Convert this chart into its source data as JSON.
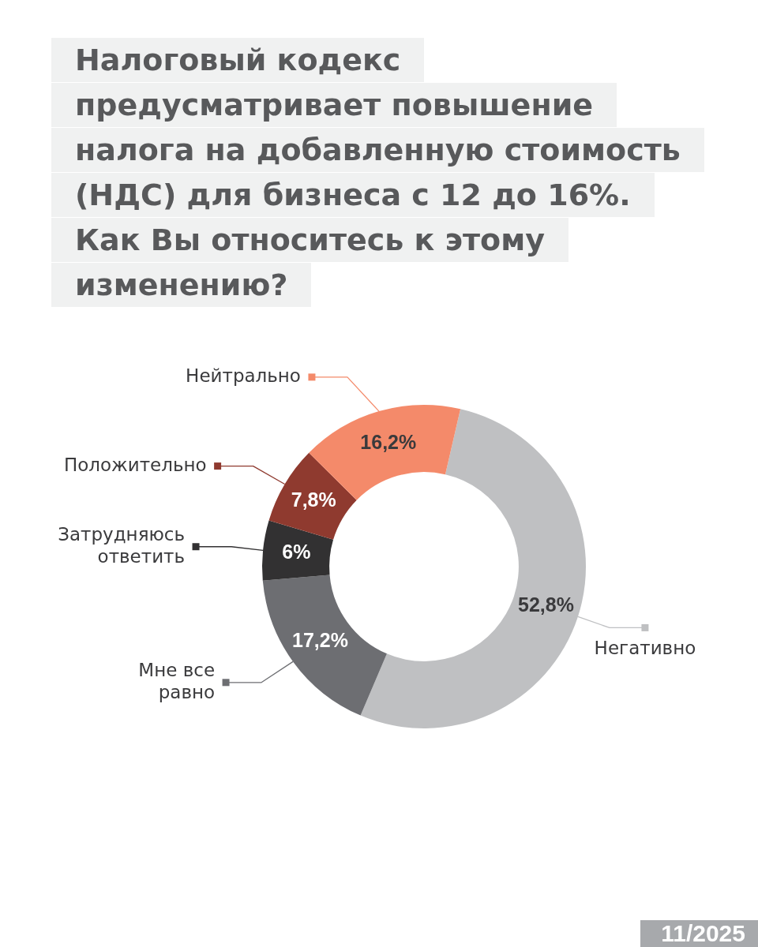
{
  "chart_data": {
    "type": "donut",
    "title": "Налоговый кодекс предусматривает повышение налога на добавленную стоимость (НДС) для бизнеса с 12 до 16%. Как Вы относитесь к этому изменению?",
    "categories": [
      "Негативно",
      "Мне все равно",
      "Затрудняюсь ответить",
      "Положительно",
      "Нейтрально"
    ],
    "values": [
      52.8,
      17.2,
      6,
      7.8,
      16.2
    ],
    "colors": [
      "#bfc0c2",
      "#6d6e72",
      "#323132",
      "#8f3a2f",
      "#f48a6a"
    ],
    "value_labels": [
      "52,8%",
      "17,2%",
      "6%",
      "7,8%",
      "16,2%"
    ],
    "legend": "left",
    "annotations": [
      "11/2025"
    ]
  }
}
